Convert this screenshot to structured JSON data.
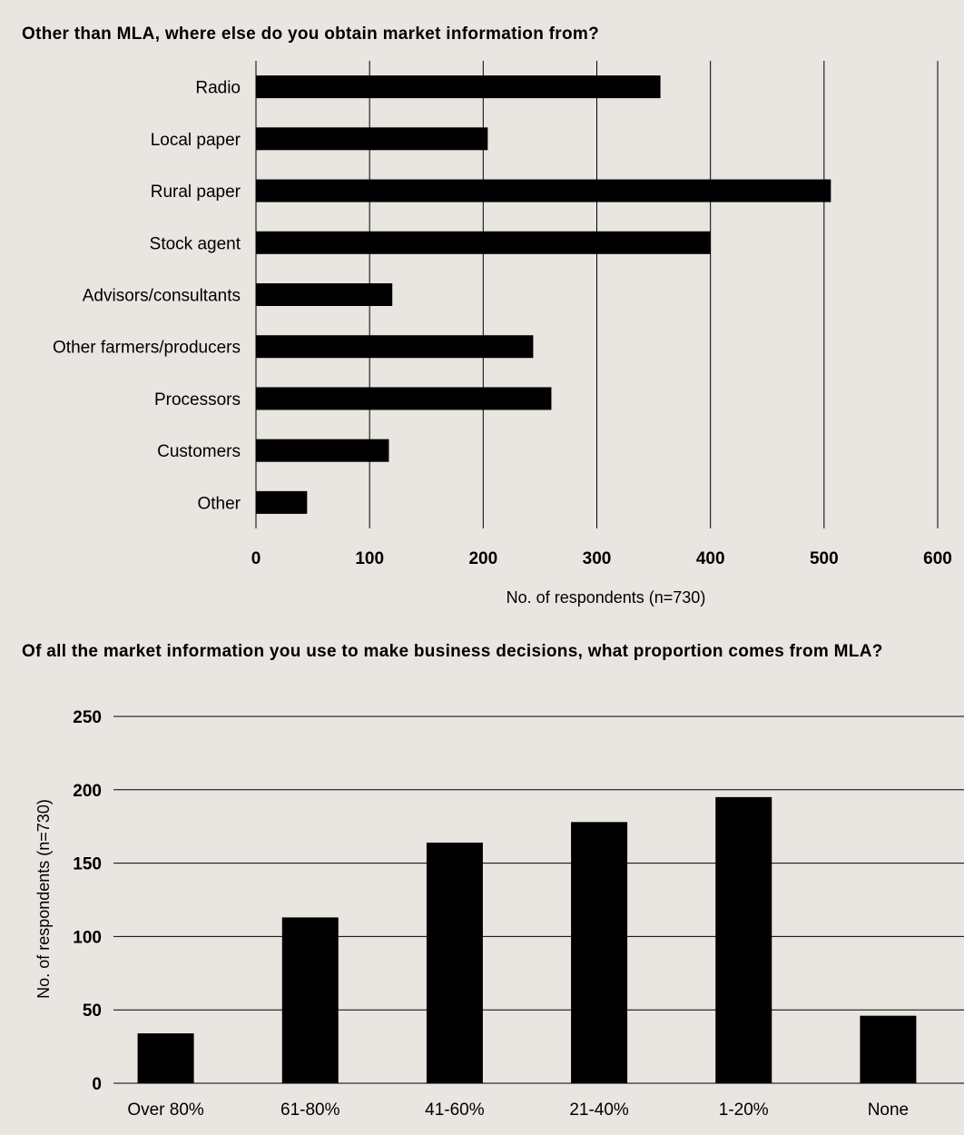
{
  "chart_data": [
    {
      "type": "bar",
      "orientation": "horizontal",
      "title": "Other than MLA, where else do you obtain market information from?",
      "xlabel": "No. of respondents (n=730)",
      "ylabel": "",
      "categories": [
        "Radio",
        "Local paper",
        "Rural paper",
        "Stock agent",
        "Advisors/consultants",
        "Other farmers/producers",
        "Processors",
        "Customers",
        "Other"
      ],
      "values": [
        356,
        204,
        506,
        400,
        120,
        244,
        260,
        117,
        45
      ],
      "xlim": [
        0,
        600
      ],
      "ticks": [
        "0",
        "100",
        "200",
        "300",
        "400",
        "500",
        "600"
      ],
      "grid": "vertical",
      "bar_color": "#000000"
    },
    {
      "type": "bar",
      "orientation": "vertical",
      "title": "Of all the market information you use to make business decisions, what proportion comes from MLA?",
      "xlabel": "",
      "ylabel": "No. of respondents (n=730)",
      "categories": [
        "Over 80%",
        "61-80%",
        "41-60%",
        "21-40%",
        "1-20%",
        "None"
      ],
      "values": [
        34,
        113,
        164,
        178,
        195,
        46
      ],
      "ylim": [
        0,
        250
      ],
      "ticks": [
        "0",
        "50",
        "100",
        "150",
        "200",
        "250"
      ],
      "grid": "horizontal",
      "bar_color": "#000000"
    }
  ],
  "style": {
    "background": "#e9e6e1",
    "bar_color": "#000000",
    "grid_color": "#000000"
  }
}
